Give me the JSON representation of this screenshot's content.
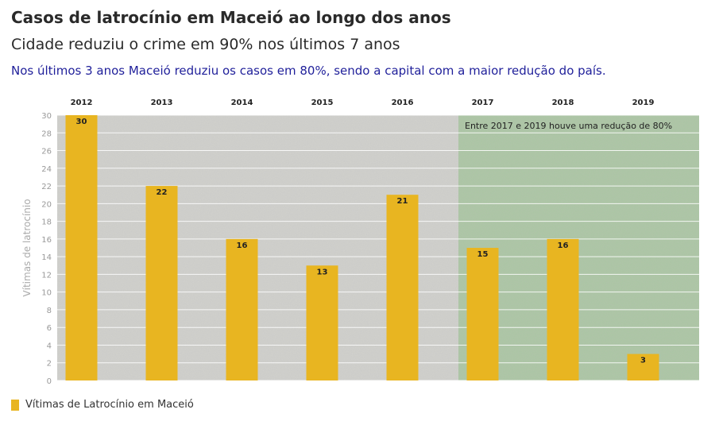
{
  "title": "Casos de latrocínio em Maceió ao longo dos anos",
  "subtitle": "Cidade reduziu o crime em 90% nos últimos 7 anos",
  "note": "Nos últimos 3 anos Maceió reduziu os casos em 80%, sendo a capital com a maior redução do país.",
  "colors": {
    "bar": "#e8b521",
    "highlight_region": "#a9c7a0",
    "base_region": "#d2d2ce",
    "note_text": "#1f1f9a"
  },
  "chart_data": {
    "type": "bar",
    "categories": [
      "2012",
      "2013",
      "2014",
      "2015",
      "2016",
      "2017",
      "2018",
      "2019"
    ],
    "series": [
      {
        "name": "Vítimas de Latrocínio em Maceió",
        "values": [
          30,
          22,
          16,
          13,
          21,
          15,
          16,
          3
        ]
      }
    ],
    "ylabel": "Vítimas de latrocínio",
    "ylim": [
      0,
      30
    ],
    "yticks": [
      0,
      2,
      4,
      6,
      8,
      10,
      12,
      14,
      16,
      18,
      20,
      22,
      24,
      26,
      28,
      30
    ],
    "x_axis_position": "top",
    "grid": true,
    "legend_position": "bottom-left",
    "highlight": {
      "from": "2017",
      "to": "2019",
      "label": "Entre 2017 e 2019 houve uma redução de 80%"
    }
  }
}
